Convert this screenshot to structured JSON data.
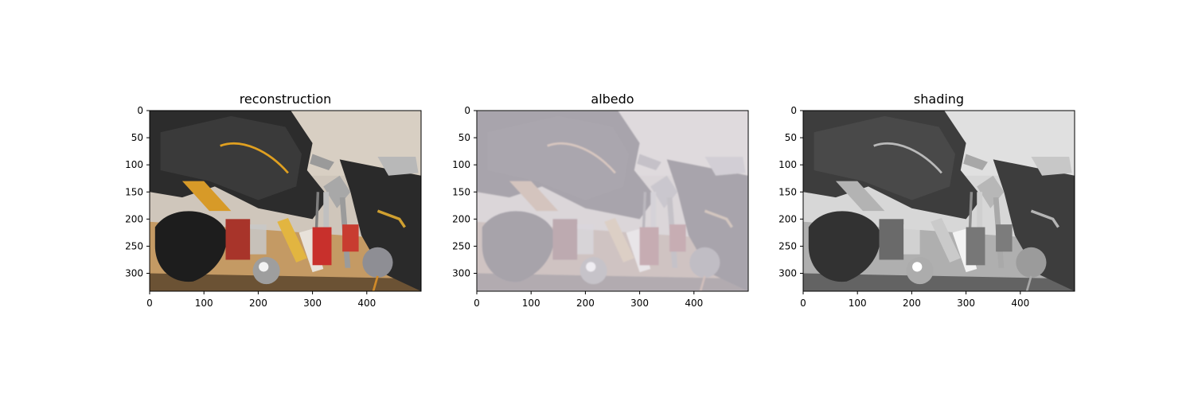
{
  "chart_data": [
    {
      "type": "image",
      "title": "reconstruction",
      "variant": "color",
      "xlim": [
        0,
        500
      ],
      "ylim": [
        333,
        0
      ],
      "xticks": [
        0,
        100,
        200,
        300,
        400
      ],
      "yticks": [
        0,
        50,
        100,
        150,
        200,
        250,
        300
      ]
    },
    {
      "type": "image",
      "title": "albedo",
      "variant": "albedo",
      "xlim": [
        0,
        500
      ],
      "ylim": [
        333,
        0
      ],
      "xticks": [
        0,
        100,
        200,
        300,
        400
      ],
      "yticks": [
        0,
        50,
        100,
        150,
        200,
        250,
        300
      ]
    },
    {
      "type": "image",
      "title": "shading",
      "variant": "gray",
      "xlim": [
        0,
        500
      ],
      "ylim": [
        333,
        0
      ],
      "xticks": [
        0,
        100,
        200,
        300,
        400
      ],
      "yticks": [
        0,
        50,
        100,
        150,
        200,
        250,
        300
      ]
    }
  ]
}
